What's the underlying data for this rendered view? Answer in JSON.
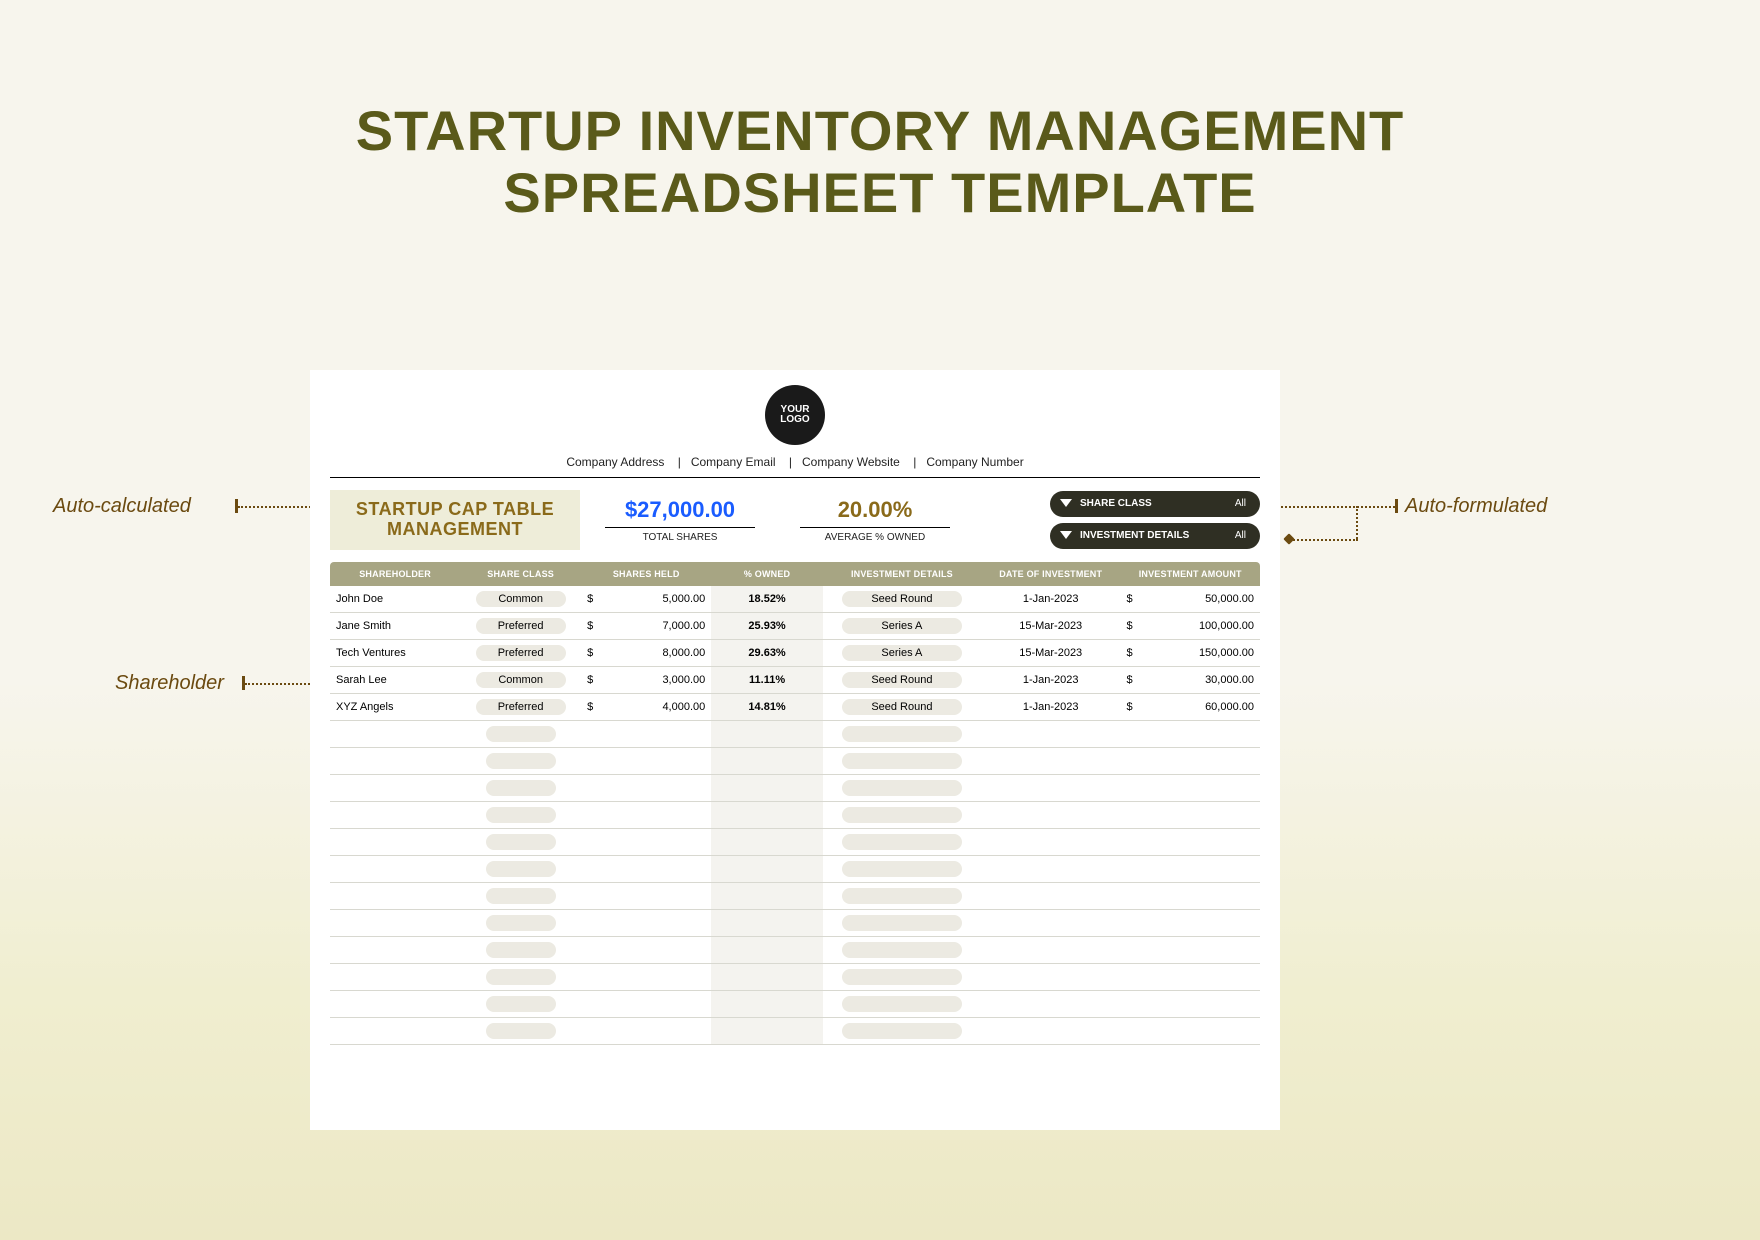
{
  "page": {
    "title_line1": "STARTUP INVENTORY MANAGEMENT",
    "title_line2": "SPREADSHEET TEMPLATE",
    "title_color": "#5a5a1a",
    "bg_gradient_top": "#f7f5ed",
    "bg_gradient_bottom": "#ece8c5"
  },
  "logo": {
    "line1": "YOUR",
    "line2": "LOGO"
  },
  "company": {
    "address": "Company Address",
    "email": "Company Email",
    "website": "Company Website",
    "number": "Company Number"
  },
  "cap_title": {
    "line1": "STARTUP CAP TABLE",
    "line2": "MANAGEMENT",
    "bg": "#eeedd9",
    "color": "#8a6a1a"
  },
  "summary": {
    "total_shares": {
      "value": "$27,000.00",
      "label": "TOTAL SHARES",
      "color": "#1a5cff"
    },
    "avg_owned": {
      "value": "20.00%",
      "label": "AVERAGE % OWNED",
      "color": "#8a6a1a"
    }
  },
  "filters": {
    "share_class": {
      "label": "SHARE CLASS",
      "value": "All"
    },
    "invest_det": {
      "label": "INVESTMENT DETAILS",
      "value": "All"
    },
    "pill_bg": "#2f2f23"
  },
  "table": {
    "header_bg": "#a7a583",
    "owned_col_bg": "#f4f3ef",
    "columns": [
      "SHAREHOLDER",
      "SHARE CLASS",
      "SHARES HELD",
      "% OWNED",
      "INVESTMENT DETAILS",
      "DATE OF INVESTMENT",
      "INVESTMENT AMOUNT"
    ],
    "rows": [
      {
        "shareholder": "John Doe",
        "share_class": "Common",
        "shares_held": "5,000.00",
        "pct_owned": "18.52%",
        "investment_details": "Seed Round",
        "date": "1-Jan-2023",
        "amount": "50,000.00"
      },
      {
        "shareholder": "Jane Smith",
        "share_class": "Preferred",
        "shares_held": "7,000.00",
        "pct_owned": "25.93%",
        "investment_details": "Series A",
        "date": "15-Mar-2023",
        "amount": "100,000.00"
      },
      {
        "shareholder": "Tech Ventures",
        "share_class": "Preferred",
        "shares_held": "8,000.00",
        "pct_owned": "29.63%",
        "investment_details": "Series A",
        "date": "15-Mar-2023",
        "amount": "150,000.00"
      },
      {
        "shareholder": "Sarah Lee",
        "share_class": "Common",
        "shares_held": "3,000.00",
        "pct_owned": "11.11%",
        "investment_details": "Seed Round",
        "date": "1-Jan-2023",
        "amount": "30,000.00"
      },
      {
        "shareholder": "XYZ Angels",
        "share_class": "Preferred",
        "shares_held": "4,000.00",
        "pct_owned": "14.81%",
        "investment_details": "Seed Round",
        "date": "1-Jan-2023",
        "amount": "60,000.00"
      }
    ],
    "empty_rows": 12
  },
  "annotations": {
    "auto_calculated": "Auto-calculated",
    "auto_formulated": "Auto-formulated",
    "shareholder": "Shareholder",
    "color": "#6b4a10"
  }
}
